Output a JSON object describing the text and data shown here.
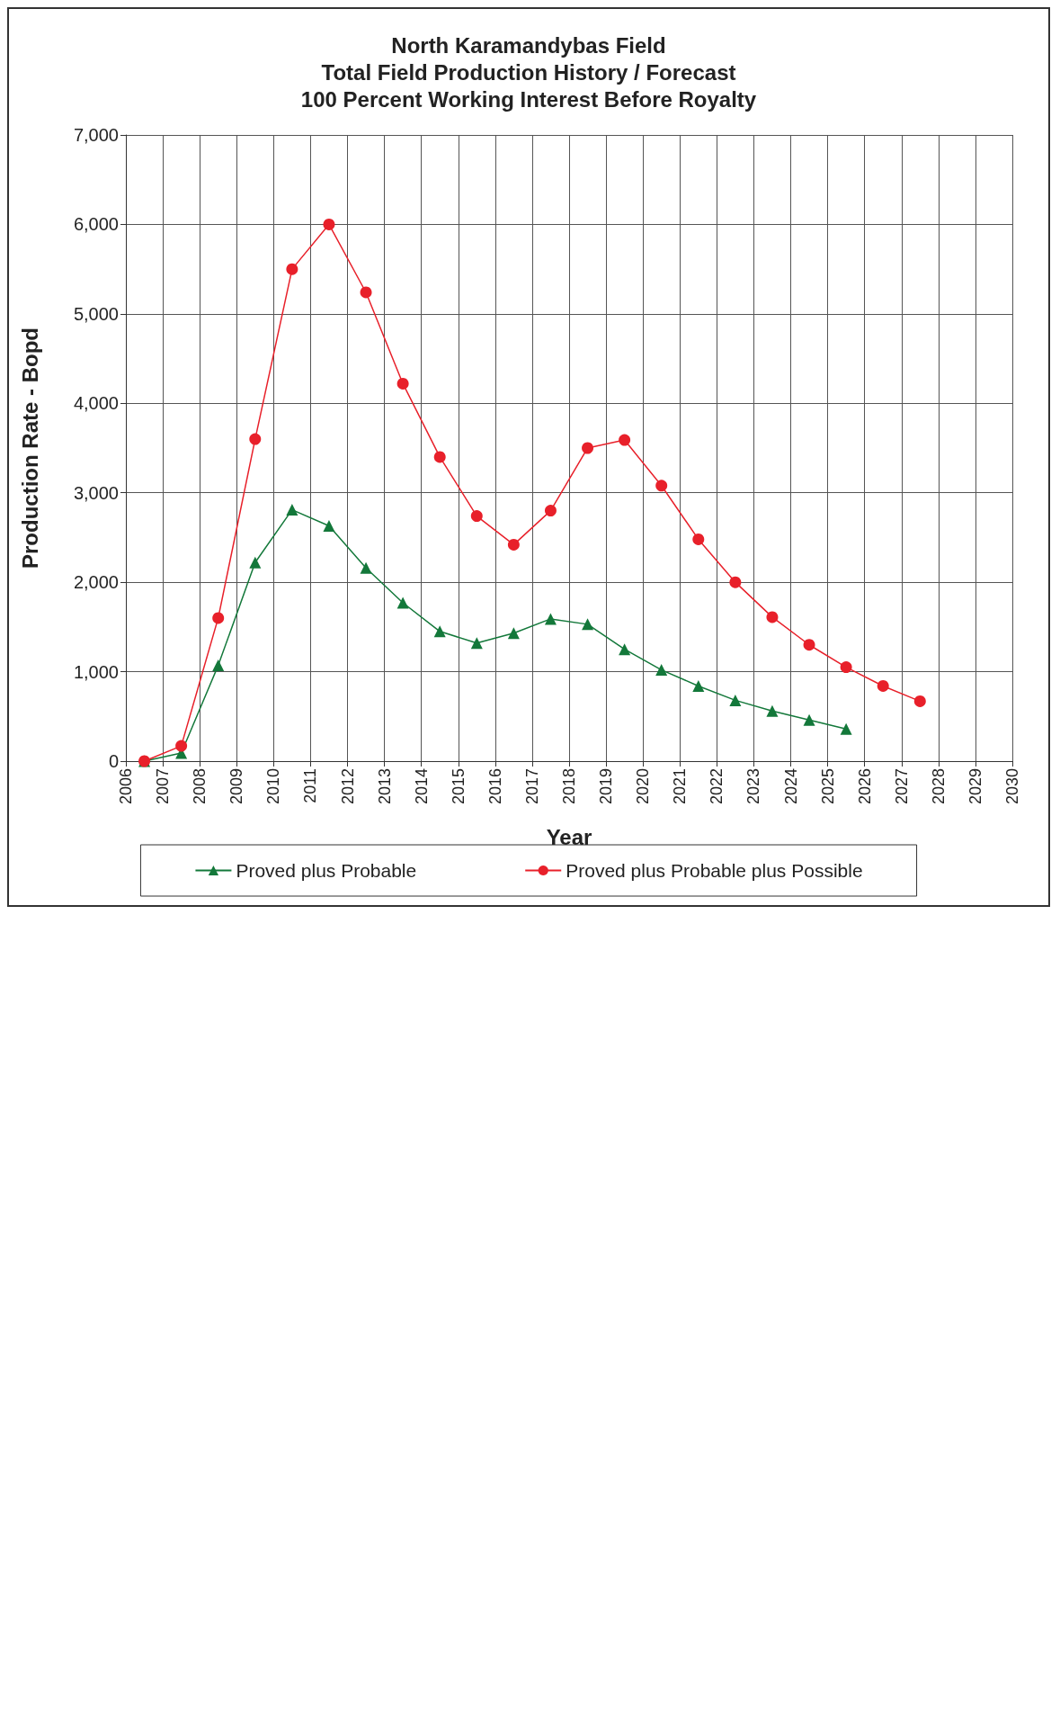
{
  "chart_data": {
    "type": "line",
    "title": "North Karamandybas Field\nTotal Field Production History / Forecast\n100 Percent Working Interest Before Royalty",
    "xlabel": "Year",
    "ylabel": "Production Rate - Bopd",
    "x": [
      2006.5,
      2007.5,
      2008.5,
      2009.5,
      2010.5,
      2011.5,
      2012.5,
      2013.5,
      2014.5,
      2015.5,
      2016.5,
      2017.5,
      2018.5,
      2019.5,
      2020.5,
      2021.5,
      2022.5,
      2023.5,
      2024.5,
      2025.5,
      2026.5,
      2027.5
    ],
    "series": [
      {
        "name": "Proved plus Probable",
        "color": "#13783a",
        "marker": "triangle",
        "x": [
          2006.5,
          2007.5,
          2008.5,
          2009.5,
          2010.5,
          2011.5,
          2012.5,
          2013.5,
          2014.5,
          2015.5,
          2016.5,
          2017.5,
          2018.5,
          2019.5,
          2020.5,
          2021.5,
          2022.5,
          2023.5,
          2024.5,
          2025.5
        ],
        "values": [
          0,
          90,
          1070,
          2220,
          2810,
          2630,
          2160,
          1770,
          1450,
          1320,
          1430,
          1590,
          1530,
          1250,
          1020,
          840,
          680,
          560,
          460,
          360
        ]
      },
      {
        "name": "Proved plus Probable plus Possible",
        "color": "#e8202a",
        "marker": "circle",
        "values": [
          0,
          170,
          1600,
          3600,
          5500,
          6000,
          5240,
          4220,
          3400,
          2740,
          2420,
          2800,
          3500,
          3590,
          3080,
          2480,
          2000,
          1610,
          1300,
          1050,
          840,
          670
        ]
      }
    ],
    "xlim": [
      2006,
      2030
    ],
    "xticks": [
      2006,
      2007,
      2008,
      2009,
      2010,
      2011,
      2012,
      2013,
      2014,
      2015,
      2016,
      2017,
      2018,
      2019,
      2020,
      2021,
      2022,
      2023,
      2024,
      2025,
      2026,
      2027,
      2028,
      2029,
      2030
    ],
    "ylim": [
      0,
      7000
    ],
    "yticks": [
      0,
      {
        "value": 1000,
        "label": "1,000"
      },
      {
        "value": 2000,
        "label": "2,000"
      },
      {
        "value": 3000,
        "label": "3,000"
      },
      {
        "value": 4000,
        "label": "4,000"
      },
      {
        "value": 5000,
        "label": "5,000"
      },
      {
        "value": 6000,
        "label": "6,000"
      },
      {
        "value": 7000,
        "label": "7,000"
      }
    ],
    "grid": true,
    "legend": "bottom",
    "line_style": "solid"
  }
}
